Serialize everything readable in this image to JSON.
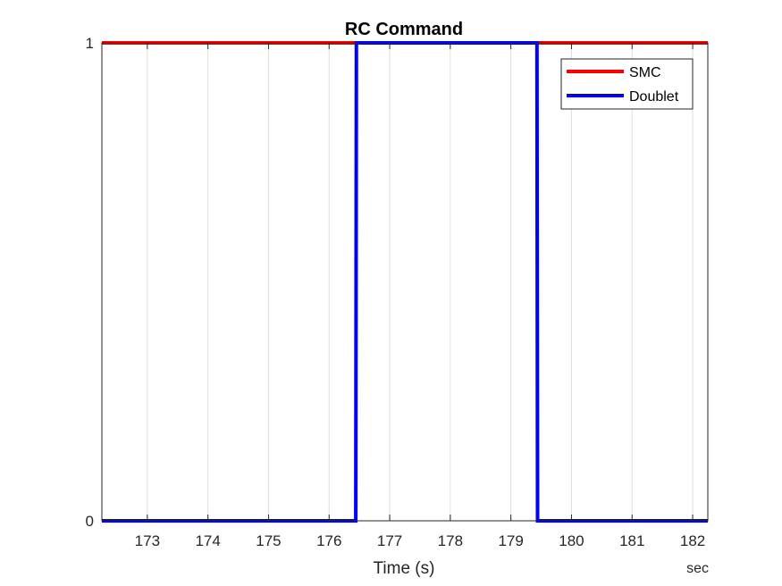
{
  "chart_data": {
    "type": "line",
    "title": "RC Command",
    "xlabel": "Time (s)",
    "ylabel": "",
    "x_unit": "sec",
    "xlim": [
      172.25,
      182.25
    ],
    "ylim": [
      0,
      1
    ],
    "xticks": [
      173,
      174,
      175,
      176,
      177,
      178,
      179,
      180,
      181,
      182
    ],
    "yticks": [
      0,
      1
    ],
    "grid": "vertical",
    "legend_position": "top-right",
    "series": [
      {
        "name": "SMC",
        "color": "#ff0000",
        "x": [
          172.25,
          182.25
        ],
        "y": [
          1,
          1
        ]
      },
      {
        "name": "Doublet",
        "color": "#0000ff",
        "x": [
          172.25,
          176.44,
          176.45,
          179.43,
          179.44,
          182.25
        ],
        "y": [
          0,
          0,
          1,
          1,
          0,
          0
        ]
      }
    ]
  }
}
